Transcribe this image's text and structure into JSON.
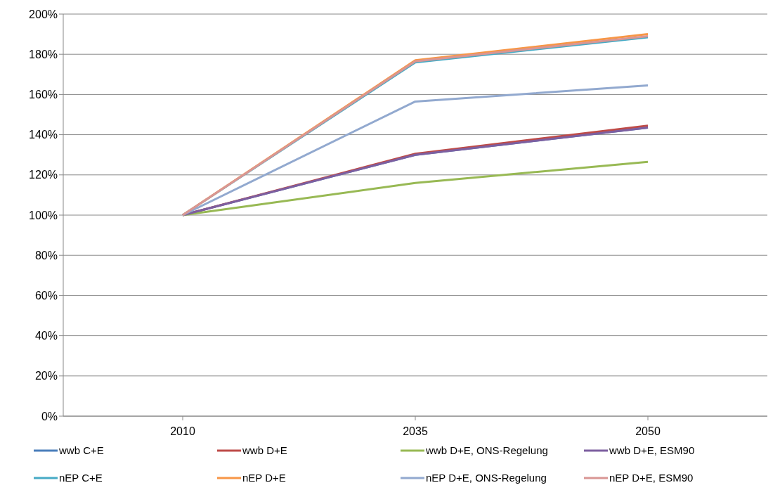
{
  "chart_data": {
    "type": "line",
    "categories": [
      "2010",
      "2035",
      "2050"
    ],
    "series": [
      {
        "name": "wwb C+E",
        "color": "#4a7ebb",
        "values": [
          100,
          130,
          143.5
        ]
      },
      {
        "name": "wwb D+E",
        "color": "#be4b48",
        "values": [
          100,
          130.5,
          144.5
        ]
      },
      {
        "name": "wwb D+E, ONS-Regelung",
        "color": "#98b954",
        "values": [
          100,
          116,
          126.5
        ]
      },
      {
        "name": "wwb D+E, ESM90",
        "color": "#7d5fa0",
        "values": [
          100,
          130,
          143.5
        ]
      },
      {
        "name": "nEP C+E",
        "color": "#46aac5",
        "values": [
          100,
          176,
          188.5
        ]
      },
      {
        "name": "nEP D+E",
        "color": "#f79646",
        "values": [
          100,
          177,
          190
        ]
      },
      {
        "name": "nEP D+E, ONS-Regelung",
        "color": "#92a9cf",
        "values": [
          100,
          156.5,
          164.5
        ]
      },
      {
        "name": "nEP D+E, ESM90",
        "color": "#d99694",
        "values": [
          100,
          176.5,
          189
        ]
      }
    ],
    "ylim": [
      0,
      200
    ],
    "yticks": [
      {
        "value": 0,
        "label": "0%"
      },
      {
        "value": 20,
        "label": "20%"
      },
      {
        "value": 40,
        "label": "40%"
      },
      {
        "value": 60,
        "label": "60%"
      },
      {
        "value": 80,
        "label": "80%"
      },
      {
        "value": 100,
        "label": "100%"
      },
      {
        "value": 120,
        "label": "120%"
      },
      {
        "value": 140,
        "label": "140%"
      },
      {
        "value": 160,
        "label": "160%"
      },
      {
        "value": 180,
        "label": "180%"
      },
      {
        "value": 200,
        "label": "200%"
      }
    ],
    "grid": "y",
    "legend": "bottom",
    "marker": "none",
    "line_style": "solid"
  }
}
